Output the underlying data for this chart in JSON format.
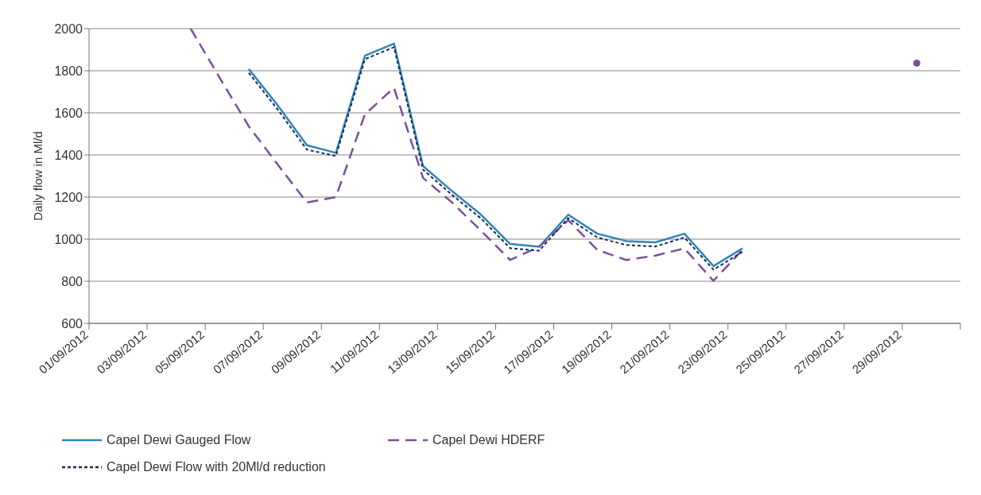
{
  "chart_data": {
    "type": "line",
    "ylabel": "Daily flow in Ml/d",
    "x": [
      "2012-09-04T12:00",
      "2012-09-05T12:00",
      "2012-09-06T12:00",
      "2012-09-07T12:00",
      "2012-09-08T12:00",
      "2012-09-09T12:00",
      "2012-09-10T12:00",
      "2012-09-11T12:00",
      "2012-09-12T12:00",
      "2012-09-13T12:00",
      "2012-09-14T12:00",
      "2012-09-15T12:00",
      "2012-09-16T12:00",
      "2012-09-17T12:00",
      "2012-09-18T12:00",
      "2012-09-19T12:00",
      "2012-09-20T12:00",
      "2012-09-21T12:00",
      "2012-09-22T12:00",
      "2012-09-23T12:00",
      "2012-09-24T12:00",
      "2012-09-25T12:00",
      "2012-09-26T12:00",
      "2012-09-27T12:00",
      "2012-09-28T12:00",
      "2012-09-29T12:00"
    ],
    "series": [
      {
        "name": "Capel Dewi Gauged Flow",
        "color": "#2f86b8",
        "line_style": "solid",
        "values": [
          null,
          null,
          1808,
          1635,
          1446,
          1410,
          1871,
          1929,
          1347,
          1228,
          1116,
          977,
          964,
          1116,
          1026,
          991,
          985,
          1026,
          872,
          956,
          null,
          null,
          null,
          null,
          null,
          null
        ]
      },
      {
        "name": "Capel Dewi HDERF",
        "color": "#7a4f9c",
        "line_style": "dashed",
        "values": [
          2000,
          1766,
          1536,
          1354,
          1174,
          1200,
          1593,
          1719,
          1291,
          1174,
          1040,
          901,
          964,
          1090,
          949,
          901,
          922,
          956,
          802,
          949,
          null,
          null,
          null,
          null,
          null,
          1836
        ]
      },
      {
        "name": "Capel Dewi Flow with 20Ml/d reduction",
        "color": "#1b2a5c",
        "line_style": "dotted",
        "values": [
          null,
          null,
          1790,
          1615,
          1425,
          1395,
          1855,
          1912,
          1330,
          1210,
          1098,
          957,
          945,
          1100,
          1008,
          972,
          965,
          1008,
          855,
          940,
          null,
          null,
          null,
          null,
          null,
          null
        ]
      }
    ],
    "xlim": [
      "2012-09-01",
      "2012-10-01"
    ],
    "xticks": [
      {
        "value": "2012-09-01",
        "label": "01/09/2012"
      },
      {
        "value": "2012-09-03",
        "label": "03/09/2012"
      },
      {
        "value": "2012-09-05",
        "label": "05/09/2012"
      },
      {
        "value": "2012-09-07",
        "label": "07/09/2012"
      },
      {
        "value": "2012-09-09",
        "label": "09/09/2012"
      },
      {
        "value": "2012-09-11",
        "label": "11/09/2012"
      },
      {
        "value": "2012-09-13",
        "label": "13/09/2012"
      },
      {
        "value": "2012-09-15",
        "label": "15/09/2012"
      },
      {
        "value": "2012-09-17",
        "label": "17/09/2012"
      },
      {
        "value": "2012-09-19",
        "label": "19/09/2012"
      },
      {
        "value": "2012-09-21",
        "label": "21/09/2012"
      },
      {
        "value": "2012-09-23",
        "label": "23/09/2012"
      },
      {
        "value": "2012-09-25",
        "label": "25/09/2012"
      },
      {
        "value": "2012-09-27",
        "label": "27/09/2012"
      },
      {
        "value": "2012-09-29",
        "label": "29/09/2012"
      },
      {
        "value": "2012-10-01",
        "label": null
      }
    ],
    "ylim": [
      600,
      2000
    ],
    "yticks": [
      600,
      800,
      1000,
      1200,
      1400,
      1600,
      1800,
      2000
    ],
    "grid": "y",
    "legend": "bottom",
    "marker": "none"
  }
}
